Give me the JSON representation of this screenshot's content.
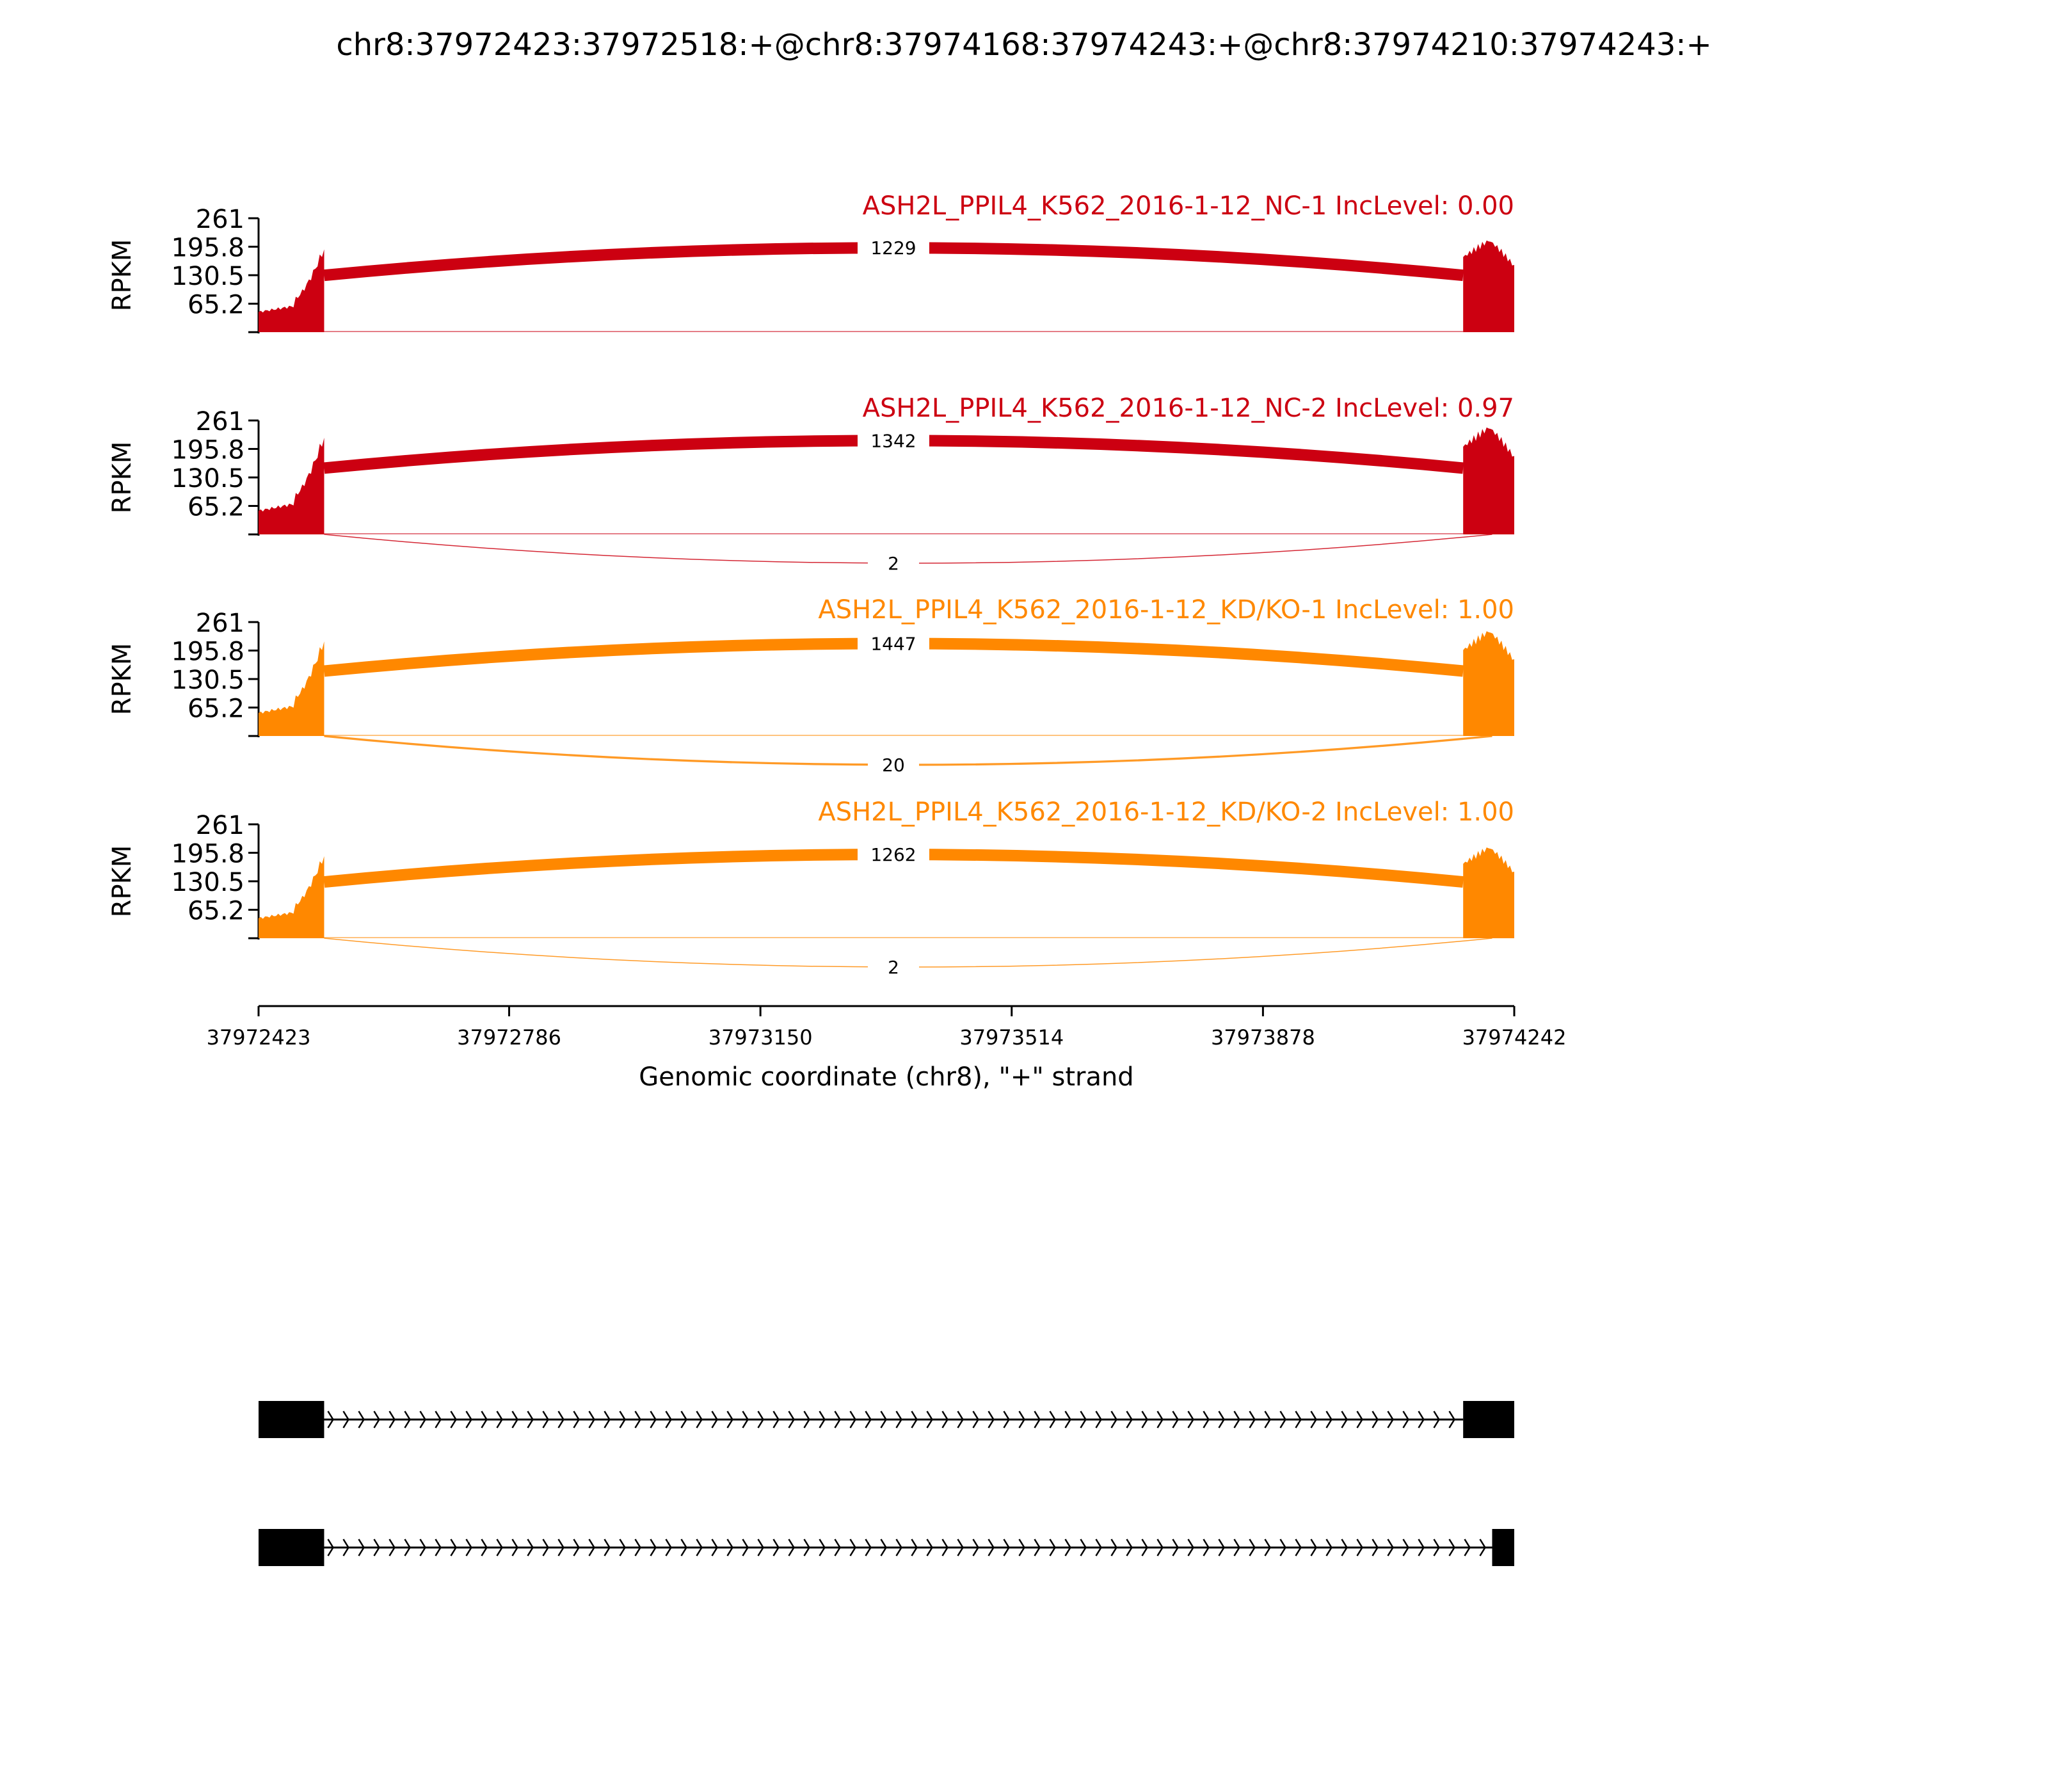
{
  "chart_data": {
    "type": "area",
    "title": "chr8:37972423:37972518:+@chr8:37974168:37974243:+@chr8:37974210:37974243:+",
    "ylabel": "RPKM",
    "ylim": [
      0,
      261
    ],
    "yticks": [
      "261",
      "195.8",
      "130.5",
      "65.2"
    ],
    "xlim": [
      37972423,
      37974242
    ],
    "xticks": [
      "37972423",
      "37972786",
      "37973150",
      "37973514",
      "37973878",
      "37974242"
    ],
    "xlabel": "Genomic coordinate (chr8), \"+\" strand",
    "exon_regions": [
      [
        37972423,
        37972518
      ],
      [
        37974168,
        37974242
      ]
    ],
    "junction_region": [
      37972518,
      37974210
    ],
    "panels": [
      {
        "name": "ASH2L_PPIL4_K562_2016-1-12_NC-1 IncLevel: 0.00",
        "color": "#cc0011",
        "inclusion_junction_reads": "1229",
        "skipping_junction_reads": "",
        "coverage_peak": 210
      },
      {
        "name": "ASH2L_PPIL4_K562_2016-1-12_NC-2 IncLevel: 0.97",
        "color": "#cc0011",
        "inclusion_junction_reads": "1342",
        "skipping_junction_reads": "2",
        "coverage_peak": 245
      },
      {
        "name": "ASH2L_PPIL4_K562_2016-1-12_KD/KO-1 IncLevel: 1.00",
        "color": "#ff8800",
        "inclusion_junction_reads": "1447",
        "skipping_junction_reads": "20",
        "coverage_peak": 240
      },
      {
        "name": "ASH2L_PPIL4_K562_2016-1-12_KD/KO-2 IncLevel: 1.00",
        "color": "#ff8800",
        "inclusion_junction_reads": "1262",
        "skipping_junction_reads": "2",
        "coverage_peak": 208
      }
    ],
    "isoforms": [
      {
        "exons": [
          [
            37972423,
            37972518
          ],
          [
            37974168,
            37974242
          ]
        ]
      },
      {
        "exons": [
          [
            37972423,
            37972518
          ],
          [
            37974210,
            37974242
          ]
        ]
      }
    ]
  }
}
